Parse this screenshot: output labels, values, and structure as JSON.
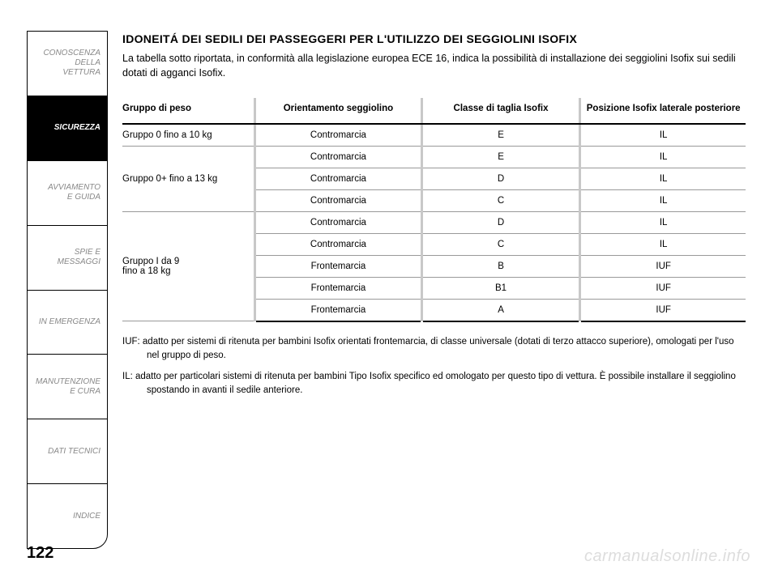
{
  "sidebar": {
    "items": [
      {
        "label": "CONOSCENZA\nDELLA\nVETTURA",
        "active": false
      },
      {
        "label": "SICUREZZA",
        "active": true
      },
      {
        "label": "AVVIAMENTO\nE GUIDA",
        "active": false
      },
      {
        "label": "SPIE E\nMESSAGGI",
        "active": false
      },
      {
        "label": "IN EMERGENZA",
        "active": false
      },
      {
        "label": "MANUTENZIONE\nE CURA",
        "active": false
      },
      {
        "label": "DATI TECNICI",
        "active": false
      },
      {
        "label": "INDICE",
        "active": false
      }
    ]
  },
  "heading": "IDONEITÁ DEI SEDILI DEI PASSEGGERI PER L'UTILIZZO DEI SEGGIOLINI ISOFIX",
  "intro": "La tabella sotto riportata, in conformità alla legislazione europea ECE 16, indica la possibilità di installazione dei seggiolini Isofix sui sedili dotati di agganci Isofix.",
  "table": {
    "headers": {
      "group": "Gruppo di peso",
      "orientation": "Orientamento\nseggiolino",
      "class": "Classe di\ntaglia Isofix",
      "position": "Posizione Isofix\nlaterale posteriore"
    },
    "groups": [
      {
        "label": "Gruppo 0 fino a 10 kg",
        "rows": [
          {
            "orientation": "Contromarcia",
            "class": "E",
            "position": "IL"
          }
        ]
      },
      {
        "label": "Gruppo 0+ fino a 13 kg",
        "rows": [
          {
            "orientation": "Contromarcia",
            "class": "E",
            "position": "IL"
          },
          {
            "orientation": "Contromarcia",
            "class": "D",
            "position": "IL"
          },
          {
            "orientation": "Contromarcia",
            "class": "C",
            "position": "IL"
          }
        ]
      },
      {
        "label": "Gruppo I da 9\nfino a 18 kg",
        "rows": [
          {
            "orientation": "Contromarcia",
            "class": "D",
            "position": "IL"
          },
          {
            "orientation": "Contromarcia",
            "class": "C",
            "position": "IL"
          },
          {
            "orientation": "Frontemarcia",
            "class": "B",
            "position": "IUF"
          },
          {
            "orientation": "Frontemarcia",
            "class": "B1",
            "position": "IUF"
          },
          {
            "orientation": "Frontemarcia",
            "class": "A",
            "position": "IUF"
          }
        ]
      }
    ]
  },
  "notes": {
    "iuf": "IUF: adatto per sistemi di ritenuta per bambini Isofix orientati frontemarcia, di classe universale (dotati di terzo attacco superiore), omologati per l'uso nel gruppo di peso.",
    "il": "IL: adatto per particolari sistemi di ritenuta per bambini Tipo Isofix specifico ed omologato  per questo  tipo di vettura. È possibile installare il seggiolino spostando in avanti il sedile anteriore."
  },
  "page_number": "122",
  "watermark": "carmanualsonline.info",
  "colors": {
    "text": "#000000",
    "muted": "#888888",
    "separator": "#c8c8c8",
    "row_border": "#999999",
    "watermark": "#dddddd",
    "background": "#ffffff"
  },
  "typography": {
    "heading_fontsize": 14,
    "body_fontsize": 12.5,
    "table_fontsize": 11.5,
    "sidebar_fontsize": 10,
    "page_number_fontsize": 20,
    "watermark_fontsize": 20
  }
}
